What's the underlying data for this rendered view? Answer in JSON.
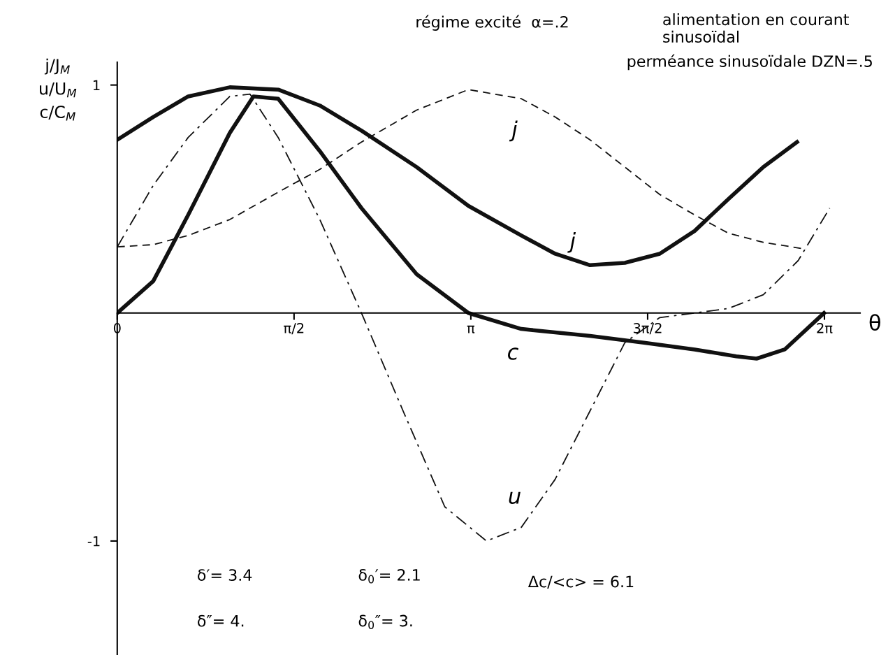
{
  "chart_data": {
    "type": "line",
    "xlabel": "θ",
    "ylabel": "j/J$_{M}$\nu/U$_{M}$\nc/C$_{M}$",
    "xlim": [
      0,
      6.6
    ],
    "ylim": [
      -1.5,
      1.1
    ],
    "xticks": [
      {
        "value": 0,
        "label": "0"
      },
      {
        "value": 1.5708,
        "label": "π/2"
      },
      {
        "value": 3.1416,
        "label": "π"
      },
      {
        "value": 4.7124,
        "label": "3π/2"
      },
      {
        "value": 6.2832,
        "label": "2π"
      }
    ],
    "yticks": [
      {
        "value": 1,
        "label": "1"
      },
      {
        "value": -1,
        "label": "-1"
      }
    ],
    "grid": false,
    "legend": false,
    "series": [
      {
        "color": "#111111",
        "line_style": "solid",
        "x": [
          0,
          0.32,
          0.63,
          1.0,
          1.43,
          1.8,
          2.17,
          2.66,
          3.12,
          3.59,
          3.89,
          4.2,
          4.51,
          4.82,
          5.13,
          5.43,
          5.74,
          6.04
        ],
        "values": [
          0.76,
          0.86,
          0.95,
          0.99,
          0.98,
          0.91,
          0.8,
          0.64,
          0.47,
          0.34,
          0.26,
          0.21,
          0.22,
          0.26,
          0.36,
          0.5,
          0.64,
          0.75
        ]
      },
      {
        "color": "#111111",
        "line_style": "dashed",
        "x": [
          0,
          0.32,
          0.63,
          1.0,
          1.43,
          1.8,
          2.17,
          2.66,
          3.12,
          3.59,
          3.89,
          4.2,
          4.51,
          4.82,
          5.13,
          5.43,
          5.74,
          6.12
        ],
        "values": [
          0.29,
          0.3,
          0.34,
          0.41,
          0.53,
          0.63,
          0.75,
          0.89,
          0.98,
          0.94,
          0.86,
          0.76,
          0.64,
          0.52,
          0.43,
          0.35,
          0.31,
          0.28
        ]
      },
      {
        "color": "#111111",
        "line_style": "solid",
        "x": [
          0,
          0.32,
          0.63,
          1.0,
          1.21,
          1.43,
          1.8,
          2.17,
          2.66,
          3.12,
          3.59,
          4.2,
          4.68,
          5.13,
          5.5,
          5.68,
          5.93,
          6.28
        ],
        "values": [
          0,
          0.14,
          0.43,
          0.79,
          0.95,
          0.94,
          0.71,
          0.46,
          0.17,
          0,
          -0.07,
          -0.1,
          -0.13,
          -0.16,
          -0.19,
          -0.2,
          -0.16,
          0
        ]
      },
      {
        "color": "#111111",
        "line_style": "dashdot",
        "x": [
          0,
          0.32,
          0.63,
          1.0,
          1.18,
          1.43,
          1.8,
          2.17,
          2.54,
          2.91,
          3.28,
          3.59,
          3.89,
          4.2,
          4.51,
          4.82,
          5.13,
          5.43,
          5.74,
          6.05,
          6.33
        ],
        "values": [
          0.29,
          0.56,
          0.77,
          0.95,
          0.96,
          0.77,
          0.41,
          0,
          -0.43,
          -0.85,
          -1.0,
          -0.94,
          -0.73,
          -0.43,
          -0.13,
          -0.02,
          0,
          0.02,
          0.08,
          0.23,
          0.46
        ]
      }
    ],
    "annotations": [
      "j",
      "j",
      "c",
      "u",
      "régime excité  α=.2",
      "alimentation en courant\nsinusoïdal",
      "perméance sinusoïdale DZN=.5",
      "δ′= 3.4",
      "δ″= 4.",
      "δ$_{0}$′= 2.1",
      "δ$_{0}$″= 3.",
      "Δc/<c> = 6.1"
    ]
  }
}
